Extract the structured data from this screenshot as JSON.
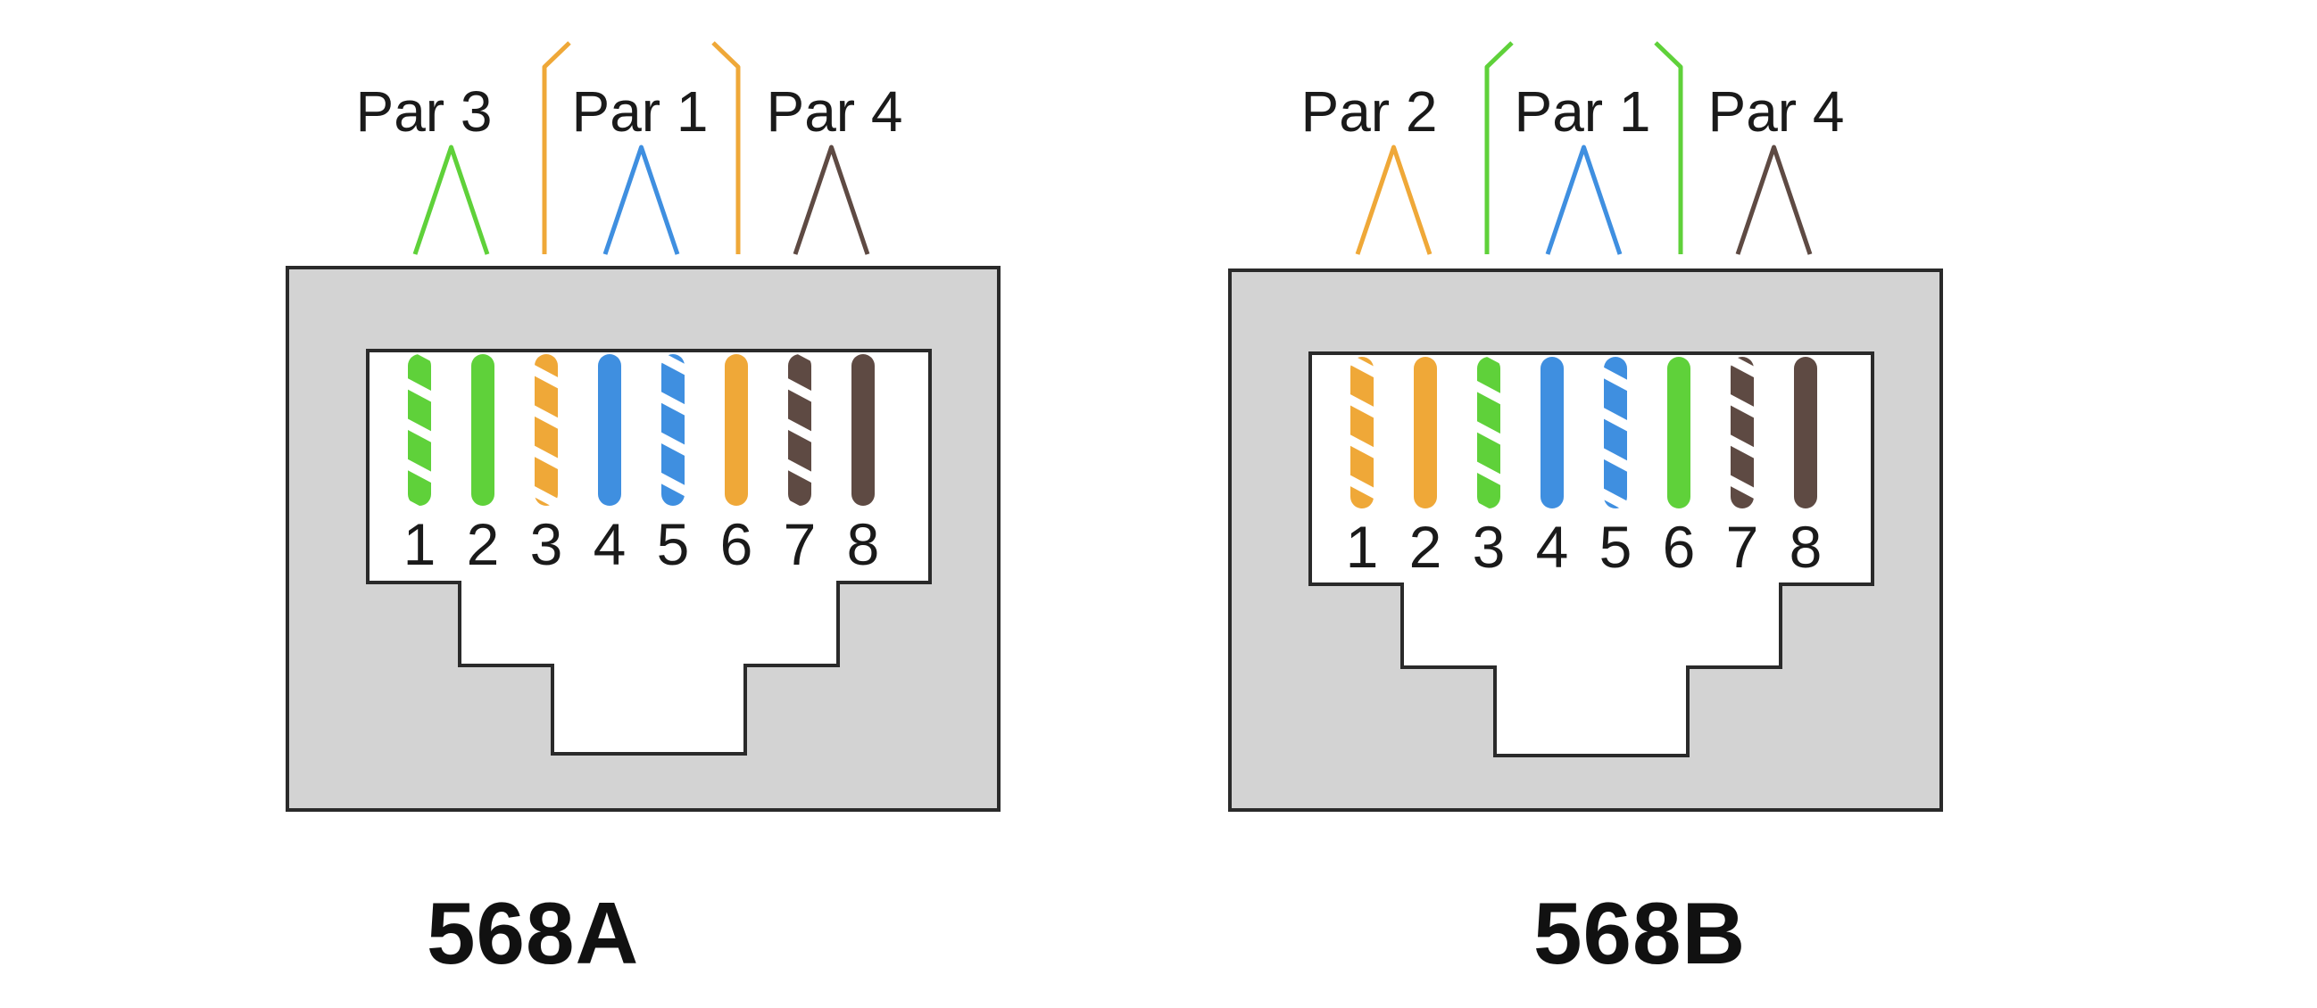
{
  "colors": {
    "green": "#5fd13a",
    "orange": "#efa838",
    "blue": "#3f8fe0",
    "brown": "#5e4a43",
    "housing": "#d3d3d3",
    "outline": "#2a2a2a"
  },
  "standards": [
    {
      "name": "568A",
      "pairs": [
        {
          "label": "Par 3",
          "color": "green",
          "pins": [
            1,
            2
          ]
        },
        {
          "label": "Par 1",
          "color": "blue",
          "pins": [
            4,
            5
          ]
        },
        {
          "label": "Par 4",
          "color": "brown",
          "pins": [
            7,
            8
          ]
        },
        {
          "label": "",
          "color": "orange",
          "pins": [
            3,
            6
          ]
        }
      ],
      "pins": [
        {
          "number": "1",
          "color": "green",
          "striped": true
        },
        {
          "number": "2",
          "color": "green",
          "striped": false
        },
        {
          "number": "3",
          "color": "orange",
          "striped": true
        },
        {
          "number": "4",
          "color": "blue",
          "striped": false
        },
        {
          "number": "5",
          "color": "blue",
          "striped": true
        },
        {
          "number": "6",
          "color": "orange",
          "striped": false
        },
        {
          "number": "7",
          "color": "brown",
          "striped": true
        },
        {
          "number": "8",
          "color": "brown",
          "striped": false
        }
      ]
    },
    {
      "name": "568B",
      "pairs": [
        {
          "label": "Par 2",
          "color": "orange",
          "pins": [
            1,
            2
          ]
        },
        {
          "label": "Par 1",
          "color": "blue",
          "pins": [
            4,
            5
          ]
        },
        {
          "label": "Par 4",
          "color": "brown",
          "pins": [
            7,
            8
          ]
        },
        {
          "label": "",
          "color": "green",
          "pins": [
            3,
            6
          ]
        }
      ],
      "pins": [
        {
          "number": "1",
          "color": "orange",
          "striped": true
        },
        {
          "number": "2",
          "color": "orange",
          "striped": false
        },
        {
          "number": "3",
          "color": "green",
          "striped": true
        },
        {
          "number": "4",
          "color": "blue",
          "striped": false
        },
        {
          "number": "5",
          "color": "blue",
          "striped": true
        },
        {
          "number": "6",
          "color": "green",
          "striped": false
        },
        {
          "number": "7",
          "color": "brown",
          "striped": true
        },
        {
          "number": "8",
          "color": "brown",
          "striped": false
        }
      ]
    }
  ]
}
